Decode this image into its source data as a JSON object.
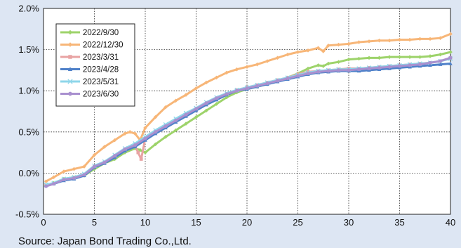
{
  "source_note": "Source: Japan Bond Trading Co.,Ltd.",
  "chart_data": {
    "type": "line",
    "title": "",
    "xlabel": "",
    "ylabel": "",
    "xlim": [
      0,
      40
    ],
    "ylim": [
      -0.5,
      2.0
    ],
    "x_ticks": [
      0,
      5,
      10,
      15,
      20,
      25,
      30,
      35,
      40
    ],
    "x_tick_labels": [
      "0",
      "5",
      "10",
      "15",
      "20",
      "25",
      "30",
      "35",
      "40"
    ],
    "y_ticks": [
      -0.5,
      0.0,
      0.5,
      1.0,
      1.5,
      2.0
    ],
    "y_tick_labels": [
      "-0.5%",
      "0.0%",
      "0.5%",
      "1.0%",
      "1.5%",
      "2.0%"
    ],
    "grid": true,
    "legend_position": "top-left",
    "series": [
      {
        "name": "2022/9/30",
        "color": "#9dd36a",
        "marker": "diamond",
        "x": [
          0.25,
          1,
          2,
          3,
          4,
          5,
          6,
          7,
          8,
          9,
          9.5,
          10,
          11,
          12,
          13,
          14,
          15,
          16,
          17,
          18,
          19,
          20,
          21,
          22,
          23,
          24,
          25,
          26,
          27,
          27.5,
          28,
          29,
          30,
          31,
          32,
          33,
          34,
          35,
          36,
          37,
          38,
          39,
          40
        ],
        "y": [
          -0.15,
          -0.12,
          -0.07,
          -0.05,
          -0.03,
          0.05,
          0.12,
          0.17,
          0.25,
          0.3,
          0.28,
          0.25,
          0.35,
          0.44,
          0.52,
          0.6,
          0.68,
          0.76,
          0.84,
          0.92,
          0.98,
          1.02,
          1.05,
          1.08,
          1.12,
          1.16,
          1.21,
          1.27,
          1.31,
          1.3,
          1.33,
          1.35,
          1.38,
          1.39,
          1.4,
          1.4,
          1.41,
          1.41,
          1.41,
          1.41,
          1.42,
          1.44,
          1.47
        ]
      },
      {
        "name": "2022/12/30",
        "color": "#f7b678",
        "marker": "diamond",
        "x": [
          0.25,
          1,
          2,
          3,
          4,
          5,
          6,
          7,
          8,
          8.5,
          9,
          9.5,
          10,
          11,
          12,
          13,
          14,
          15,
          16,
          17,
          18,
          19,
          20,
          21,
          22,
          23,
          24,
          25,
          26,
          27,
          27.5,
          28,
          29,
          30,
          31,
          32,
          33,
          34,
          35,
          36,
          37,
          38,
          39,
          40
        ],
        "y": [
          -0.1,
          -0.05,
          0.02,
          0.05,
          0.08,
          0.22,
          0.32,
          0.4,
          0.48,
          0.5,
          0.48,
          0.4,
          0.55,
          0.68,
          0.8,
          0.88,
          0.95,
          1.03,
          1.1,
          1.16,
          1.22,
          1.26,
          1.29,
          1.32,
          1.36,
          1.4,
          1.44,
          1.47,
          1.49,
          1.52,
          1.48,
          1.55,
          1.56,
          1.57,
          1.59,
          1.6,
          1.61,
          1.61,
          1.62,
          1.62,
          1.63,
          1.63,
          1.64,
          1.69
        ]
      },
      {
        "name": "2023/3/31",
        "color": "#e8a3a3",
        "marker": "square",
        "x": [
          0.25,
          1,
          2,
          3,
          4,
          5,
          6,
          7,
          8,
          9,
          9.3,
          9.6,
          10,
          11,
          12,
          13,
          14,
          15,
          16,
          17,
          18,
          19,
          20,
          21,
          22,
          23,
          24,
          25,
          26,
          27,
          28,
          29,
          30,
          31,
          32,
          33,
          34,
          35,
          36,
          37,
          38,
          39,
          40
        ],
        "y": [
          -0.15,
          -0.13,
          -0.08,
          -0.06,
          -0.02,
          0.08,
          0.13,
          0.2,
          0.28,
          0.33,
          0.25,
          0.17,
          0.42,
          0.5,
          0.56,
          0.63,
          0.7,
          0.77,
          0.84,
          0.9,
          0.96,
          1.01,
          1.04,
          1.07,
          1.1,
          1.13,
          1.16,
          1.2,
          1.23,
          1.24,
          1.25,
          1.26,
          1.27,
          1.27,
          1.28,
          1.29,
          1.3,
          1.31,
          1.32,
          1.33,
          1.34,
          1.36,
          1.4
        ]
      },
      {
        "name": "2023/4/28",
        "color": "#4f81c9",
        "marker": "triangle",
        "x": [
          0.25,
          1,
          2,
          3,
          4,
          5,
          6,
          7,
          8,
          9,
          10,
          11,
          12,
          13,
          14,
          15,
          16,
          17,
          18,
          19,
          20,
          21,
          22,
          23,
          24,
          25,
          26,
          27,
          28,
          29,
          30,
          31,
          32,
          33,
          34,
          35,
          36,
          37,
          38,
          39,
          40
        ],
        "y": [
          -0.15,
          -0.13,
          -0.09,
          -0.07,
          -0.03,
          0.07,
          0.12,
          0.19,
          0.27,
          0.32,
          0.4,
          0.48,
          0.55,
          0.62,
          0.69,
          0.76,
          0.83,
          0.89,
          0.95,
          1.0,
          1.02,
          1.05,
          1.08,
          1.11,
          1.14,
          1.17,
          1.2,
          1.22,
          1.23,
          1.24,
          1.24,
          1.24,
          1.25,
          1.26,
          1.27,
          1.28,
          1.29,
          1.3,
          1.31,
          1.32,
          1.33
        ]
      },
      {
        "name": "2023/5/31",
        "color": "#8ed6ea",
        "marker": "x",
        "x": [
          0.25,
          1,
          2,
          3,
          4,
          5,
          6,
          7,
          8,
          9,
          10,
          11,
          12,
          13,
          14,
          15,
          16,
          17,
          18,
          19,
          20,
          21,
          22,
          23,
          24,
          25,
          26,
          27,
          28,
          29,
          30,
          31,
          32,
          33,
          34,
          35,
          36,
          37,
          38,
          39,
          40
        ],
        "y": [
          -0.14,
          -0.12,
          -0.07,
          -0.05,
          -0.01,
          0.09,
          0.14,
          0.22,
          0.3,
          0.36,
          0.44,
          0.52,
          0.59,
          0.66,
          0.73,
          0.79,
          0.86,
          0.92,
          0.97,
          1.01,
          1.04,
          1.07,
          1.1,
          1.13,
          1.16,
          1.19,
          1.22,
          1.24,
          1.25,
          1.26,
          1.26,
          1.27,
          1.28,
          1.29,
          1.3,
          1.31,
          1.32,
          1.33,
          1.34,
          1.36,
          1.39
        ]
      },
      {
        "name": "2023/6/30",
        "color": "#a990cf",
        "marker": "circle",
        "x": [
          0.25,
          1,
          2,
          3,
          4,
          5,
          6,
          7,
          8,
          9,
          10,
          11,
          12,
          13,
          14,
          15,
          16,
          17,
          18,
          19,
          20,
          21,
          22,
          23,
          24,
          25,
          26,
          27,
          28,
          29,
          30,
          31,
          32,
          33,
          34,
          35,
          36,
          37,
          38,
          39,
          40
        ],
        "y": [
          -0.16,
          -0.13,
          -0.08,
          -0.06,
          -0.02,
          0.08,
          0.13,
          0.21,
          0.29,
          0.34,
          0.42,
          0.5,
          0.57,
          0.64,
          0.71,
          0.78,
          0.85,
          0.91,
          0.96,
          1.0,
          1.03,
          1.06,
          1.09,
          1.12,
          1.15,
          1.18,
          1.21,
          1.23,
          1.24,
          1.25,
          1.25,
          1.26,
          1.27,
          1.28,
          1.29,
          1.3,
          1.31,
          1.32,
          1.34,
          1.36,
          1.4
        ]
      }
    ]
  }
}
